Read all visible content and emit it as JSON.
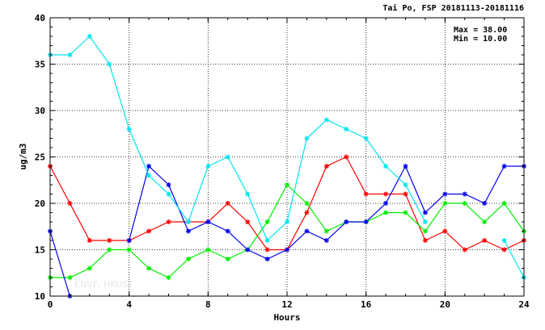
{
  "chart_data": {
    "type": "line",
    "title": "Tai Po, FSP 20181113-20181116",
    "xlabel": "Hours",
    "ylabel": "ug/m3",
    "xlim": [
      0,
      24
    ],
    "ylim": [
      10,
      40
    ],
    "x_ticks": [
      0,
      4,
      8,
      12,
      16,
      20,
      24
    ],
    "y_ticks": [
      10,
      15,
      20,
      25,
      30,
      35,
      40
    ],
    "grid": true,
    "stats": {
      "max": "Max = 38.00",
      "min": "Min = 10.00"
    },
    "watermark": "ENVF, HKUST",
    "x": [
      0,
      1,
      2,
      3,
      4,
      5,
      6,
      7,
      8,
      9,
      10,
      11,
      12,
      13,
      14,
      15,
      16,
      17,
      18,
      19,
      20,
      21,
      22,
      23,
      24
    ],
    "series": [
      {
        "color": "#ff0000",
        "values": [
          24,
          20,
          16,
          16,
          16,
          17,
          18,
          18,
          18,
          20,
          18,
          15,
          15,
          19,
          24,
          25,
          21,
          21,
          21,
          16,
          17,
          15,
          16,
          15,
          16
        ]
      },
      {
        "color": "#00ee00",
        "values": [
          12,
          12,
          13,
          15,
          15,
          13,
          12,
          14,
          15,
          14,
          15,
          18,
          22,
          20,
          17,
          18,
          18,
          19,
          19,
          17,
          20,
          20,
          18,
          20,
          17
        ]
      },
      {
        "color": "#0000ee",
        "values": [
          17,
          10,
          null,
          null,
          16,
          24,
          22,
          17,
          18,
          17,
          15,
          14,
          15,
          17,
          16,
          18,
          18,
          20,
          24,
          19,
          21,
          21,
          20,
          24,
          24
        ]
      },
      {
        "color": "#00e5ee",
        "values": [
          36,
          36,
          38,
          35,
          28,
          23,
          21,
          18,
          24,
          25,
          21,
          16,
          18,
          27,
          29,
          28,
          27,
          24,
          22,
          18,
          null,
          null,
          null,
          16,
          12
        ]
      }
    ]
  }
}
